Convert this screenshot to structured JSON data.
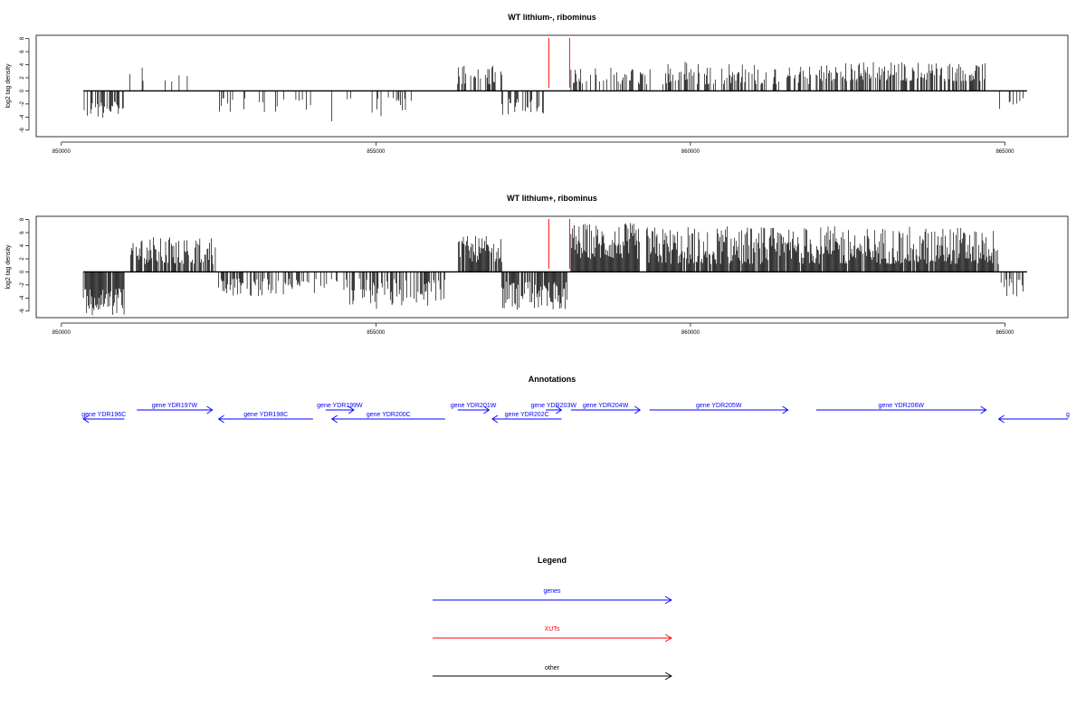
{
  "panels": [
    {
      "title": "WT lithium-, ribominus",
      "ylabel": "log2 tag density"
    },
    {
      "title": "WT lithium+, ribominus",
      "ylabel": "log2 tag density"
    }
  ],
  "annotations_title": "Annotations",
  "legend": {
    "title": "Legend",
    "items": [
      {
        "label": "genes",
        "color": "#0000ff"
      },
      {
        "label": "XUTs",
        "color": "#ff0000"
      },
      {
        "label": "other",
        "color": "#000000"
      }
    ]
  },
  "chart_data": [
    {
      "type": "bar",
      "title": "WT lithium-, ribominus",
      "xlabel": "",
      "ylabel": "log2 tag density",
      "xlim": [
        849600,
        866000
      ],
      "ylim": [
        -7,
        8.5
      ],
      "x_ticks": [
        850000,
        855000,
        860000,
        865000
      ],
      "x_tick_labels": [
        "850000",
        "855000",
        "860000",
        "865000"
      ],
      "y_ticks": [
        -6,
        -4,
        -2,
        0,
        2,
        4,
        6,
        8
      ],
      "y_tick_labels": [
        "-6",
        "-4",
        "-2",
        "0",
        "2",
        "4",
        "6",
        "8"
      ],
      "xut_markers": [
        857750,
        858080
      ],
      "segments": [
        {
          "x": [
            850350,
            851000
          ],
          "sign": -1,
          "hmin": 1.6,
          "hmax": 4.2,
          "density": 0.55
        },
        {
          "x": [
            851000,
            851350
          ],
          "sign": 1,
          "hmin": 1.2,
          "hmax": 3.8,
          "density": 0.15
        },
        {
          "x": [
            851600,
            852050
          ],
          "sign": 1,
          "hmin": 1.0,
          "hmax": 4.0,
          "density": 0.15
        },
        {
          "x": [
            852450,
            853300
          ],
          "sign": -1,
          "hmin": 1.0,
          "hmax": 3.6,
          "density": 0.25
        },
        {
          "x": [
            853300,
            854000
          ],
          "sign": -1,
          "hmin": 1.0,
          "hmax": 3.5,
          "density": 0.15
        },
        {
          "x": [
            854300,
            854700
          ],
          "sign": -1,
          "hmin": 1.0,
          "hmax": 4.7,
          "density": 0.15
        },
        {
          "x": [
            854900,
            855600
          ],
          "sign": -1,
          "hmin": 1.0,
          "hmax": 4.2,
          "density": 0.2
        },
        {
          "x": [
            856300,
            857000
          ],
          "sign": 1,
          "hmin": 1.0,
          "hmax": 4.0,
          "density": 0.45
        },
        {
          "x": [
            857000,
            857700
          ],
          "sign": -1,
          "hmin": 1.2,
          "hmax": 3.8,
          "density": 0.4
        },
        {
          "x": [
            858100,
            859400
          ],
          "sign": 1,
          "hmin": 1.0,
          "hmax": 3.6,
          "density": 0.45
        },
        {
          "x": [
            859500,
            860400
          ],
          "sign": 1,
          "hmin": 1.0,
          "hmax": 4.9,
          "density": 0.45
        },
        {
          "x": [
            860500,
            861200
          ],
          "sign": 1,
          "hmin": 1.0,
          "hmax": 4.3,
          "density": 0.45
        },
        {
          "x": [
            861300,
            862000
          ],
          "sign": 1,
          "hmin": 1.0,
          "hmax": 3.8,
          "density": 0.45
        },
        {
          "x": [
            862000,
            864700
          ],
          "sign": 1,
          "hmin": 1.5,
          "hmax": 4.5,
          "density": 0.6
        },
        {
          "x": [
            864900,
            865300
          ],
          "sign": -1,
          "hmin": 1.0,
          "hmax": 2.8,
          "density": 0.2
        }
      ]
    },
    {
      "type": "bar",
      "title": "WT lithium+, ribominus",
      "xlabel": "",
      "ylabel": "log2 tag density",
      "xlim": [
        849600,
        866000
      ],
      "ylim": [
        -7,
        8.5
      ],
      "x_ticks": [
        850000,
        855000,
        860000,
        865000
      ],
      "x_tick_labels": [
        "850000",
        "855000",
        "860000",
        "865000"
      ],
      "y_ticks": [
        -6,
        -4,
        -2,
        0,
        2,
        4,
        6,
        8
      ],
      "y_tick_labels": [
        "-6",
        "-4",
        "-2",
        "0",
        "2",
        "4",
        "6",
        "8"
      ],
      "xut_markers": [
        857750,
        858080
      ],
      "segments": [
        {
          "x": [
            850350,
            851000
          ],
          "sign": -1,
          "hmin": 2.5,
          "hmax": 6.6,
          "density": 0.9
        },
        {
          "x": [
            851100,
            852450
          ],
          "sign": 1,
          "hmin": 1.2,
          "hmax": 5.4,
          "density": 0.75
        },
        {
          "x": [
            852500,
            853400
          ],
          "sign": -1,
          "hmin": 1.0,
          "hmax": 3.8,
          "density": 0.55
        },
        {
          "x": [
            853400,
            854400
          ],
          "sign": -1,
          "hmin": 1.0,
          "hmax": 3.5,
          "density": 0.35
        },
        {
          "x": [
            854400,
            856100
          ],
          "sign": -1,
          "hmin": 1.0,
          "hmax": 5.8,
          "density": 0.45
        },
        {
          "x": [
            856300,
            857000
          ],
          "sign": 1,
          "hmin": 1.5,
          "hmax": 5.5,
          "density": 0.8
        },
        {
          "x": [
            857000,
            858050
          ],
          "sign": -1,
          "hmin": 1.5,
          "hmax": 5.8,
          "density": 0.85
        },
        {
          "x": [
            858100,
            859200
          ],
          "sign": 1,
          "hmin": 2.0,
          "hmax": 7.5,
          "density": 1.0
        },
        {
          "x": [
            859300,
            864900
          ],
          "sign": 1,
          "hmin": 1.2,
          "hmax": 7.0,
          "density": 0.95
        },
        {
          "x": [
            864900,
            865300
          ],
          "sign": -1,
          "hmin": 1.0,
          "hmax": 4.0,
          "density": 0.5
        }
      ]
    }
  ],
  "genes": [
    {
      "label": "gene YDR196C",
      "start": 850350,
      "end": 851000,
      "strand": "-",
      "row": 1
    },
    {
      "label": "gene YDR197W",
      "start": 851200,
      "end": 852400,
      "strand": "+",
      "row": 0
    },
    {
      "label": "gene YDR198C",
      "start": 852500,
      "end": 854000,
      "strand": "-",
      "row": 1
    },
    {
      "label": "gene YDR199W",
      "start": 854200,
      "end": 854650,
      "strand": "+",
      "row": 0
    },
    {
      "label": "gene YDR200C",
      "start": 854300,
      "end": 856100,
      "strand": "-",
      "row": 1
    },
    {
      "label": "gene YDR201W",
      "start": 856300,
      "end": 856800,
      "strand": "+",
      "row": 0
    },
    {
      "label": "gene YDR202C",
      "start": 856850,
      "end": 857950,
      "strand": "-",
      "row": 1
    },
    {
      "label": "gene YDR203W",
      "start": 857700,
      "end": 857950,
      "strand": "+",
      "row": 0
    },
    {
      "label": "gene YDR204W",
      "start": 858100,
      "end": 859200,
      "strand": "+",
      "row": 0
    },
    {
      "label": "gene YDR205W",
      "start": 859350,
      "end": 861550,
      "strand": "+",
      "row": 0
    },
    {
      "label": "gene YDR206W",
      "start": 862000,
      "end": 864700,
      "strand": "+",
      "row": 0
    },
    {
      "label": "g",
      "start": 864900,
      "end": 866000,
      "strand": "-",
      "row": 1
    }
  ]
}
